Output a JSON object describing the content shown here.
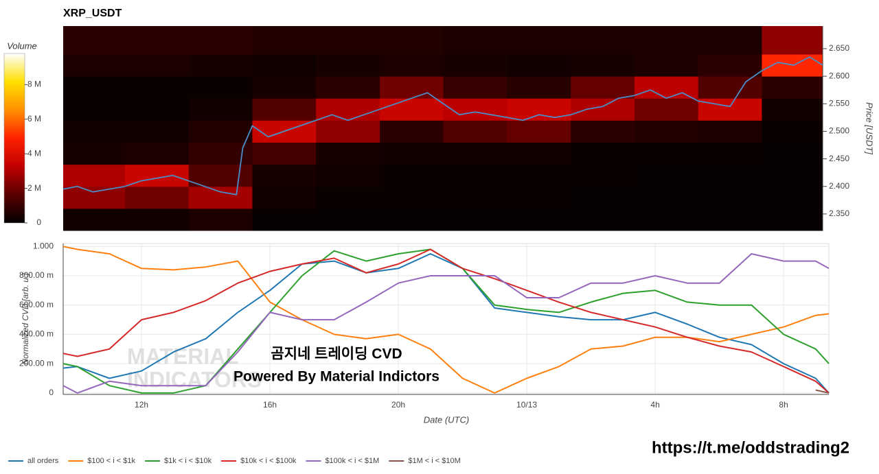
{
  "chart_data": [
    {
      "type": "heatmap",
      "title": "XRP_USDT",
      "y_label": "Price [USDT]",
      "colorbar_title": "Volume",
      "xlim": [
        9.56,
        33.41
      ],
      "ylim": [
        2.32,
        2.691
      ],
      "yticks": [
        {
          "value": 2.35,
          "label": "2.350"
        },
        {
          "value": 2.4,
          "label": "2.400"
        },
        {
          "value": 2.45,
          "label": "2.450"
        },
        {
          "value": 2.5,
          "label": "2.500"
        },
        {
          "value": 2.55,
          "label": "2.550"
        },
        {
          "value": 2.6,
          "label": "2.600"
        },
        {
          "value": 2.65,
          "label": "2.650"
        }
      ],
      "zlim": [
        0,
        9800000
      ],
      "zticks": [
        0,
        {
          "value": 2000000,
          "label": "2 M"
        },
        {
          "value": 4000000,
          "label": "4 M"
        },
        {
          "value": 6000000,
          "label": "6 M"
        },
        {
          "value": 8000000,
          "label": "8 M"
        }
      ],
      "colorscale": [
        "#000000",
        "#5a0000",
        "#c00000",
        "#ff2000",
        "#ff9000",
        "#ffe000",
        "#ffffff"
      ],
      "x_bins": [
        9.56,
        11.5,
        13.5,
        15.5,
        17.5,
        19.5,
        21.5,
        23.5,
        25.5,
        27.5,
        29.5,
        31.5,
        33.41
      ],
      "y_bins": [
        2.32,
        2.36,
        2.4,
        2.44,
        2.48,
        2.52,
        2.56,
        2.6,
        2.64,
        2.691
      ],
      "z": [
        [
          300000,
          300000,
          500000,
          100000,
          100000,
          100000,
          100000,
          100000,
          100000,
          100000,
          100000,
          100000
        ],
        [
          2500000,
          2000000,
          2800000,
          300000,
          200000,
          200000,
          200000,
          200000,
          100000,
          100000,
          100000,
          100000
        ],
        [
          3000000,
          3500000,
          1500000,
          400000,
          300000,
          200000,
          200000,
          200000,
          200000,
          100000,
          100000,
          100000
        ],
        [
          400000,
          500000,
          900000,
          1200000,
          400000,
          300000,
          300000,
          300000,
          200000,
          200000,
          200000,
          100000
        ],
        [
          300000,
          300000,
          600000,
          3500000,
          2500000,
          800000,
          1500000,
          1800000,
          800000,
          600000,
          500000,
          200000
        ],
        [
          200000,
          200000,
          300000,
          1500000,
          3000000,
          3500000,
          3200000,
          3500000,
          3000000,
          2000000,
          3500000,
          300000
        ],
        [
          200000,
          200000,
          200000,
          400000,
          800000,
          2000000,
          1000000,
          700000,
          1800000,
          3200000,
          1500000,
          800000
        ],
        [
          500000,
          500000,
          400000,
          300000,
          400000,
          500000,
          400000,
          300000,
          400000,
          500000,
          800000,
          5000000
        ],
        [
          800000,
          800000,
          800000,
          600000,
          600000,
          600000,
          500000,
          500000,
          500000,
          500000,
          500000,
          2500000
        ]
      ],
      "line": {
        "color": "#4a8fc9",
        "x": [
          9.56,
          10,
          10.5,
          11,
          11.5,
          12,
          12.5,
          13,
          13.5,
          14,
          14.5,
          15,
          15.2,
          15.5,
          16,
          16.5,
          17,
          17.5,
          18,
          18.5,
          19,
          19.5,
          20,
          20.5,
          21,
          21.5,
          22,
          22.5,
          23,
          23.5,
          24,
          24.5,
          25,
          25.5,
          26,
          26.5,
          27,
          27.5,
          28,
          28.5,
          29,
          29.5,
          30,
          30.5,
          31,
          31.5,
          32,
          32.5,
          33,
          33.41
        ],
        "values": [
          2.395,
          2.4,
          2.39,
          2.395,
          2.4,
          2.41,
          2.415,
          2.42,
          2.41,
          2.4,
          2.39,
          2.385,
          2.47,
          2.51,
          2.49,
          2.5,
          2.51,
          2.52,
          2.53,
          2.52,
          2.53,
          2.54,
          2.55,
          2.56,
          2.57,
          2.55,
          2.53,
          2.535,
          2.53,
          2.525,
          2.52,
          2.53,
          2.525,
          2.53,
          2.54,
          2.545,
          2.56,
          2.565,
          2.575,
          2.56,
          2.57,
          2.555,
          2.55,
          2.545,
          2.59,
          2.61,
          2.625,
          2.62,
          2.635,
          2.62
        ]
      }
    },
    {
      "type": "line",
      "x_label": "Date (UTC)",
      "y_label": "Normalized CVD [arb. u.]",
      "grid": true,
      "legend": "bottom-left",
      "xlim": [
        9.56,
        33.41
      ],
      "xticks": [
        {
          "value": 12,
          "label": "12h"
        },
        {
          "value": 16,
          "label": "16h"
        },
        {
          "value": 20,
          "label": "20h"
        },
        {
          "value": 24,
          "label": "10/13"
        },
        {
          "value": 28,
          "label": "4h"
        },
        {
          "value": 32,
          "label": "8h"
        }
      ],
      "ylim": [
        -0.01,
        1.02
      ],
      "yticks": [
        0,
        {
          "value": 0.2,
          "label": "200.00 m"
        },
        {
          "value": 0.4,
          "label": "400.00 m"
        },
        {
          "value": 0.6,
          "label": "600.00 m"
        },
        {
          "value": 0.8,
          "label": "800.00 m"
        },
        {
          "value": 1,
          "label": "1.000"
        }
      ],
      "x": [
        9.56,
        10,
        11,
        12,
        13,
        14,
        15,
        16,
        17,
        18,
        19,
        20,
        21,
        22,
        23,
        24,
        25,
        26,
        27,
        28,
        29,
        30,
        31,
        32,
        33,
        33.41
      ],
      "series": [
        {
          "name": "all orders",
          "color": "#1f77b4",
          "values": [
            0.17,
            0.18,
            0.1,
            0.15,
            0.28,
            0.37,
            0.55,
            0.7,
            0.88,
            0.9,
            0.82,
            0.85,
            0.95,
            0.85,
            0.58,
            0.55,
            0.52,
            0.5,
            0.5,
            0.55,
            0.47,
            0.38,
            0.33,
            0.2,
            0.1,
            0
          ]
        },
        {
          "name": "$100 < i < $1k",
          "color": "#ff7f0e",
          "values": [
            1,
            0.98,
            0.95,
            0.85,
            0.84,
            0.86,
            0.9,
            0.62,
            0.5,
            0.4,
            0.37,
            0.4,
            0.3,
            0.1,
            0,
            0.1,
            0.18,
            0.3,
            0.32,
            0.38,
            0.38,
            0.35,
            0.4,
            0.45,
            0.53,
            0.54
          ]
        },
        {
          "name": "$1k < i < $10k",
          "color": "#2ca02c",
          "values": [
            0.2,
            0.18,
            0.05,
            0,
            0,
            0.05,
            0.3,
            0.55,
            0.8,
            0.97,
            0.9,
            0.95,
            0.98,
            0.85,
            0.6,
            0.57,
            0.55,
            0.62,
            0.68,
            0.7,
            0.62,
            0.6,
            0.6,
            0.4,
            0.3,
            0.2
          ]
        },
        {
          "name": "$10k < i < $100k",
          "color": "#d62728",
          "values": [
            0.27,
            0.25,
            0.3,
            0.5,
            0.55,
            0.63,
            0.75,
            0.83,
            0.88,
            0.92,
            0.82,
            0.88,
            0.98,
            0.85,
            0.78,
            0.7,
            0.62,
            0.55,
            0.5,
            0.45,
            0.38,
            0.32,
            0.28,
            0.18,
            0.08,
            0
          ]
        },
        {
          "name": "$100k < i < $1M",
          "color": "#9467bd",
          "values": [
            0.05,
            0,
            0.08,
            0.05,
            0.05,
            0.05,
            0.28,
            0.55,
            0.5,
            0.5,
            0.62,
            0.75,
            0.8,
            0.8,
            0.8,
            0.65,
            0.65,
            0.75,
            0.75,
            0.8,
            0.75,
            0.75,
            0.95,
            0.9,
            0.9,
            0.85
          ]
        },
        {
          "name": "$1M < i < $10M",
          "color": "#8c564b",
          "values": [
            null,
            null,
            null,
            null,
            null,
            null,
            null,
            null,
            null,
            null,
            null,
            null,
            null,
            null,
            null,
            null,
            null,
            null,
            null,
            null,
            null,
            null,
            null,
            null,
            0.02,
            0
          ]
        }
      ],
      "watermark": [
        "MATERIAL",
        "INDICATORS"
      ],
      "annotations": [
        "곰지네 트레이딩 CVD",
        "Powered By Material Indictors"
      ]
    }
  ],
  "footer_link": "https://t.me/oddstrading2"
}
